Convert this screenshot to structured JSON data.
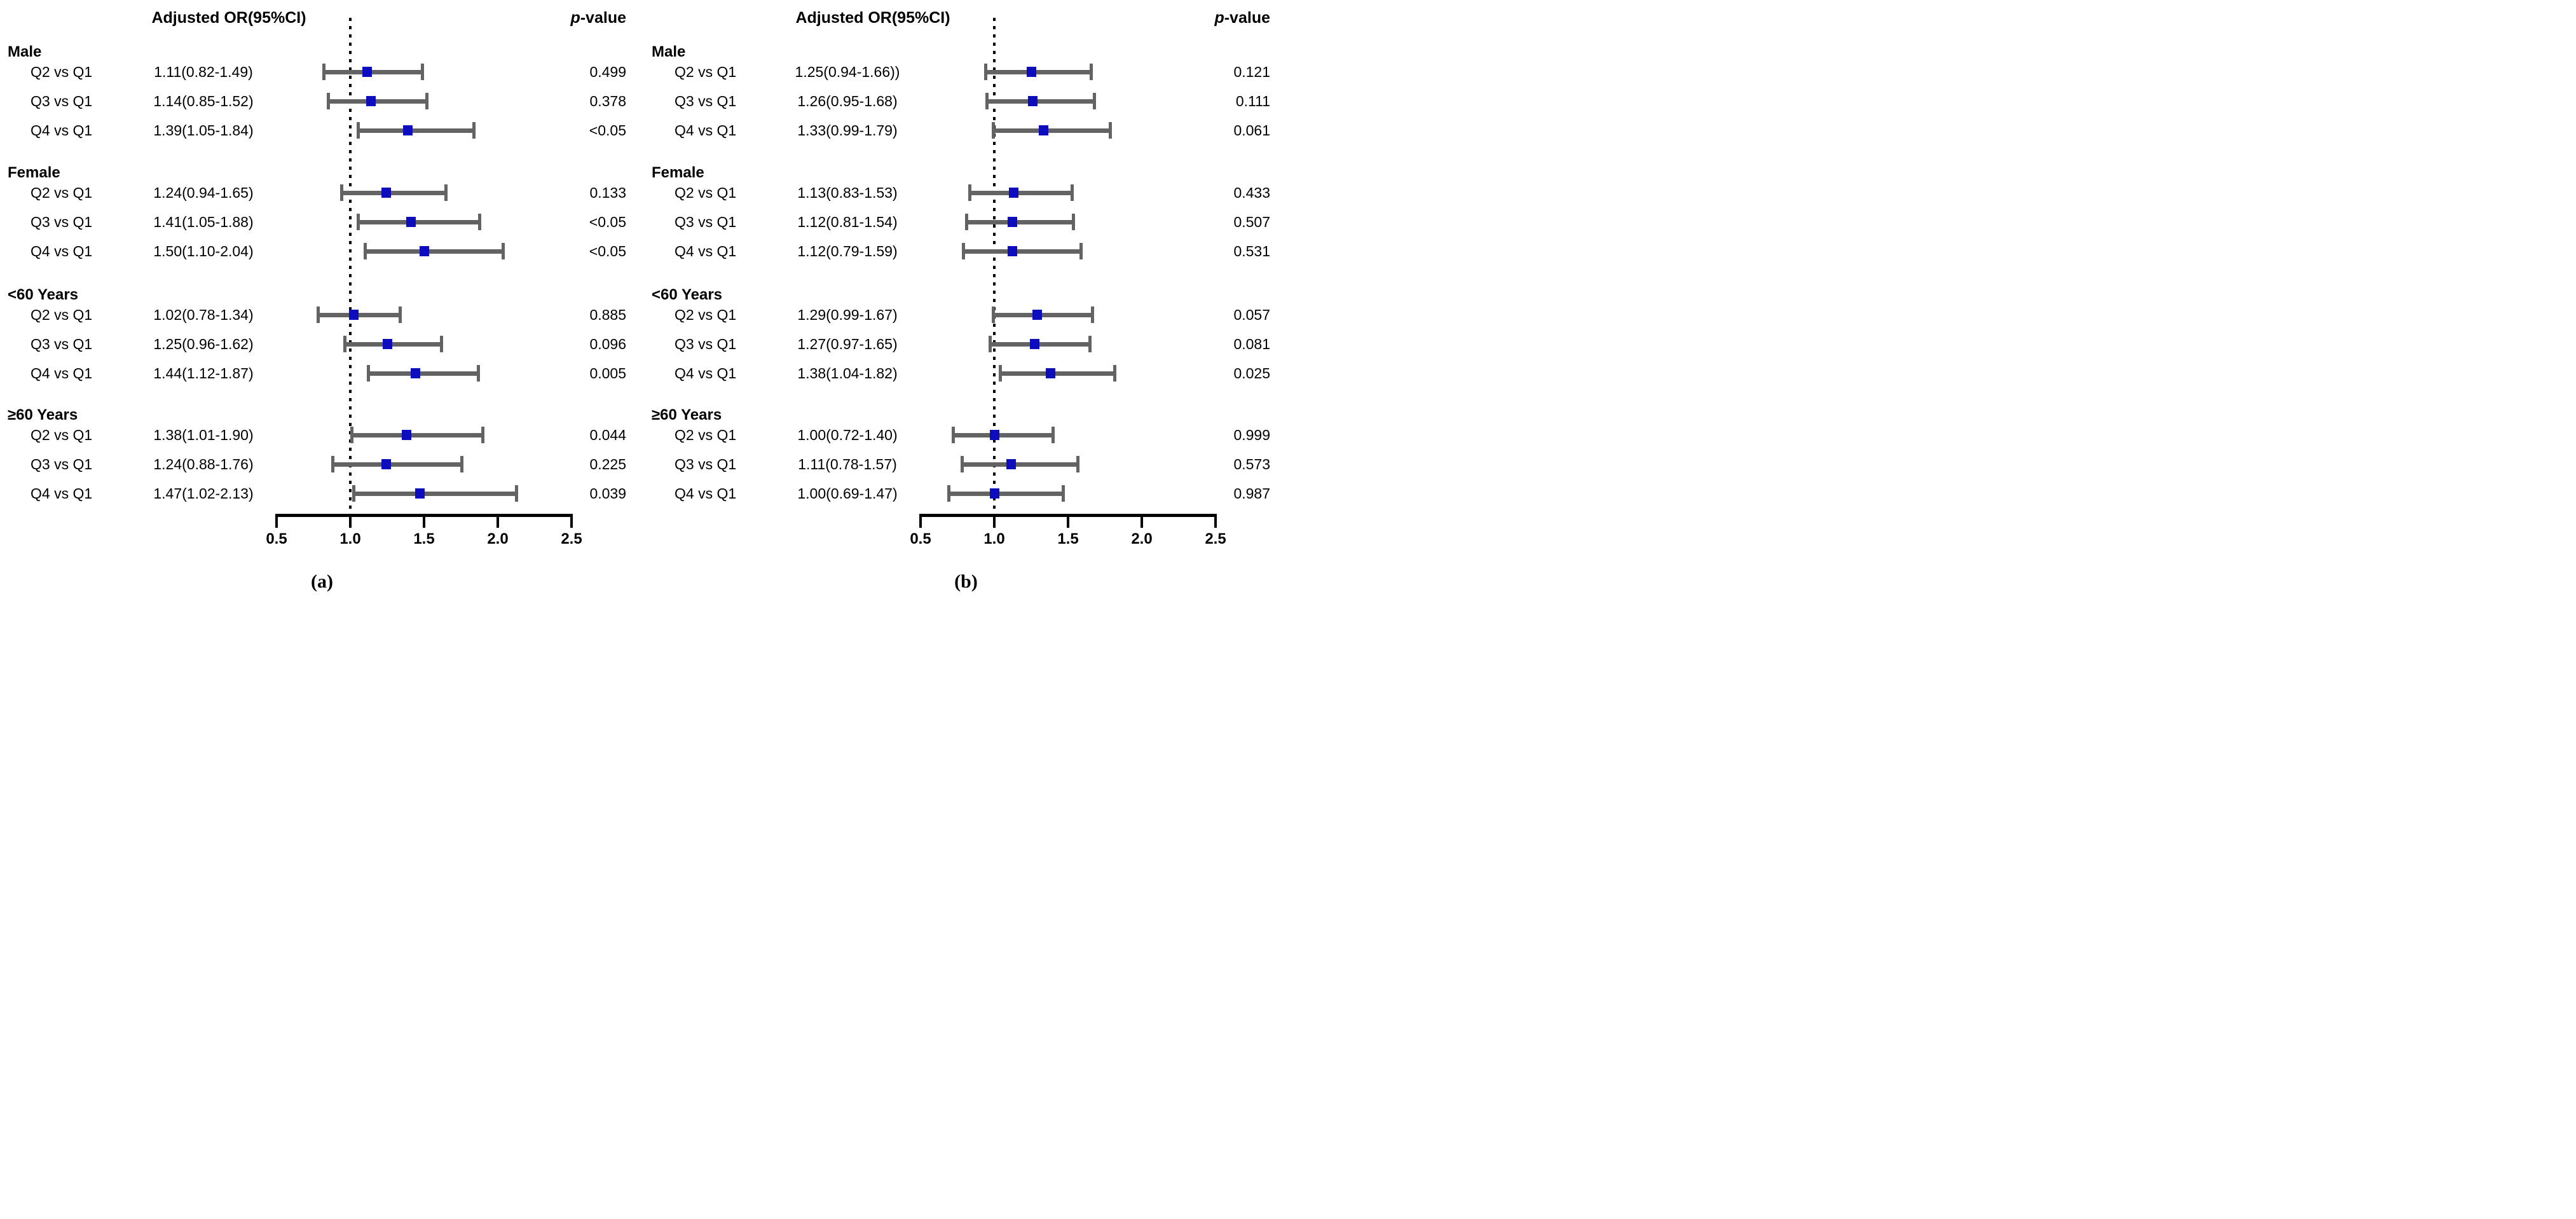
{
  "colors": {
    "marker": "#0d0dbe",
    "error_bar": "#636363",
    "axis": "#000000",
    "reference_line": "#000000"
  },
  "chart_data": [
    {
      "type": "scatter",
      "subtype": "forest-plot",
      "panel_label": "(a)",
      "title": "Adjusted OR(95%CI)",
      "p_italic": "p",
      "p_rest": "-value",
      "xlim": [
        0.5,
        2.5
      ],
      "x_ticks": [
        0.5,
        1.0,
        1.5,
        2.0,
        2.5
      ],
      "x_tick_labels": [
        "0.5",
        "1.0",
        "1.5",
        "2.0",
        "2.5"
      ],
      "reference_line": 1.0,
      "legend": "none",
      "grid": false,
      "groups": [
        {
          "label": "Male",
          "rows": [
            {
              "comparison": "Q2 vs Q1",
              "or_ci_text": "1.11(0.82-1.49)",
              "or": 1.11,
              "ci_low": 0.82,
              "ci_high": 1.49,
              "p_value": "0.499"
            },
            {
              "comparison": "Q3 vs Q1",
              "or_ci_text": "1.14(0.85-1.52)",
              "or": 1.14,
              "ci_low": 0.85,
              "ci_high": 1.52,
              "p_value": "0.378"
            },
            {
              "comparison": "Q4 vs Q1",
              "or_ci_text": "1.39(1.05-1.84)",
              "or": 1.39,
              "ci_low": 1.05,
              "ci_high": 1.84,
              "p_value": "<0.05"
            }
          ]
        },
        {
          "label": "Female",
          "rows": [
            {
              "comparison": "Q2 vs Q1",
              "or_ci_text": "1.24(0.94-1.65)",
              "or": 1.24,
              "ci_low": 0.94,
              "ci_high": 1.65,
              "p_value": "0.133"
            },
            {
              "comparison": "Q3 vs Q1",
              "or_ci_text": "1.41(1.05-1.88)",
              "or": 1.41,
              "ci_low": 1.05,
              "ci_high": 1.88,
              "p_value": "<0.05"
            },
            {
              "comparison": "Q4 vs Q1",
              "or_ci_text": "1.50(1.10-2.04)",
              "or": 1.5,
              "ci_low": 1.1,
              "ci_high": 2.04,
              "p_value": "<0.05"
            }
          ]
        },
        {
          "label": "<60 Years",
          "rows": [
            {
              "comparison": "Q2 vs Q1",
              "or_ci_text": "1.02(0.78-1.34)",
              "or": 1.02,
              "ci_low": 0.78,
              "ci_high": 1.34,
              "p_value": "0.885"
            },
            {
              "comparison": "Q3 vs Q1",
              "or_ci_text": "1.25(0.96-1.62)",
              "or": 1.25,
              "ci_low": 0.96,
              "ci_high": 1.62,
              "p_value": "0.096"
            },
            {
              "comparison": "Q4 vs Q1",
              "or_ci_text": "1.44(1.12-1.87)",
              "or": 1.44,
              "ci_low": 1.12,
              "ci_high": 1.87,
              "p_value": "0.005"
            }
          ]
        },
        {
          "label": "≥60 Years",
          "rows": [
            {
              "comparison": "Q2 vs Q1",
              "or_ci_text": "1.38(1.01-1.90)",
              "or": 1.38,
              "ci_low": 1.01,
              "ci_high": 1.9,
              "p_value": "0.044"
            },
            {
              "comparison": "Q3 vs Q1",
              "or_ci_text": "1.24(0.88-1.76)",
              "or": 1.24,
              "ci_low": 0.88,
              "ci_high": 1.76,
              "p_value": "0.225"
            },
            {
              "comparison": "Q4 vs Q1",
              "or_ci_text": "1.47(1.02-2.13)",
              "or": 1.47,
              "ci_low": 1.02,
              "ci_high": 2.13,
              "p_value": "0.039"
            }
          ]
        }
      ]
    },
    {
      "type": "scatter",
      "subtype": "forest-plot",
      "panel_label": "(b)",
      "title": "Adjusted OR(95%CI)",
      "p_italic": "p",
      "p_rest": "-value",
      "xlim": [
        0.5,
        2.5
      ],
      "x_ticks": [
        0.5,
        1.0,
        1.5,
        2.0,
        2.5
      ],
      "x_tick_labels": [
        "0.5",
        "1.0",
        "1.5",
        "2.0",
        "2.5"
      ],
      "reference_line": 1.0,
      "legend": "none",
      "grid": false,
      "groups": [
        {
          "label": "Male",
          "rows": [
            {
              "comparison": "Q2 vs Q1",
              "or_ci_text": "1.25(0.94-1.66))",
              "or": 1.25,
              "ci_low": 0.94,
              "ci_high": 1.66,
              "p_value": "0.121"
            },
            {
              "comparison": "Q3 vs Q1",
              "or_ci_text": "1.26(0.95-1.68)",
              "or": 1.26,
              "ci_low": 0.95,
              "ci_high": 1.68,
              "p_value": "0.111"
            },
            {
              "comparison": "Q4 vs Q1",
              "or_ci_text": "1.33(0.99-1.79)",
              "or": 1.33,
              "ci_low": 0.99,
              "ci_high": 1.79,
              "p_value": "0.061"
            }
          ]
        },
        {
          "label": "Female",
          "rows": [
            {
              "comparison": "Q2 vs Q1",
              "or_ci_text": "1.13(0.83-1.53)",
              "or": 1.13,
              "ci_low": 0.83,
              "ci_high": 1.53,
              "p_value": "0.433"
            },
            {
              "comparison": "Q3 vs Q1",
              "or_ci_text": "1.12(0.81-1.54)",
              "or": 1.12,
              "ci_low": 0.81,
              "ci_high": 1.54,
              "p_value": "0.507"
            },
            {
              "comparison": "Q4 vs Q1",
              "or_ci_text": "1.12(0.79-1.59)",
              "or": 1.12,
              "ci_low": 0.79,
              "ci_high": 1.59,
              "p_value": "0.531"
            }
          ]
        },
        {
          "label": "<60 Years",
          "rows": [
            {
              "comparison": "Q2 vs Q1",
              "or_ci_text": "1.29(0.99-1.67)",
              "or": 1.29,
              "ci_low": 0.99,
              "ci_high": 1.67,
              "p_value": "0.057"
            },
            {
              "comparison": "Q3 vs Q1",
              "or_ci_text": "1.27(0.97-1.65)",
              "or": 1.27,
              "ci_low": 0.97,
              "ci_high": 1.65,
              "p_value": "0.081"
            },
            {
              "comparison": "Q4 vs Q1",
              "or_ci_text": "1.38(1.04-1.82)",
              "or": 1.38,
              "ci_low": 1.04,
              "ci_high": 1.82,
              "p_value": "0.025"
            }
          ]
        },
        {
          "label": "≥60 Years",
          "rows": [
            {
              "comparison": "Q2 vs Q1",
              "or_ci_text": "1.00(0.72-1.40)",
              "or": 1.0,
              "ci_low": 0.72,
              "ci_high": 1.4,
              "p_value": "0.999"
            },
            {
              "comparison": "Q3 vs Q1",
              "or_ci_text": "1.11(0.78-1.57)",
              "or": 1.11,
              "ci_low": 0.78,
              "ci_high": 1.57,
              "p_value": "0.573"
            },
            {
              "comparison": "Q4 vs Q1",
              "or_ci_text": "1.00(0.69-1.47)",
              "or": 1.0,
              "ci_low": 0.69,
              "ci_high": 1.47,
              "p_value": "0.987"
            }
          ]
        }
      ]
    }
  ]
}
